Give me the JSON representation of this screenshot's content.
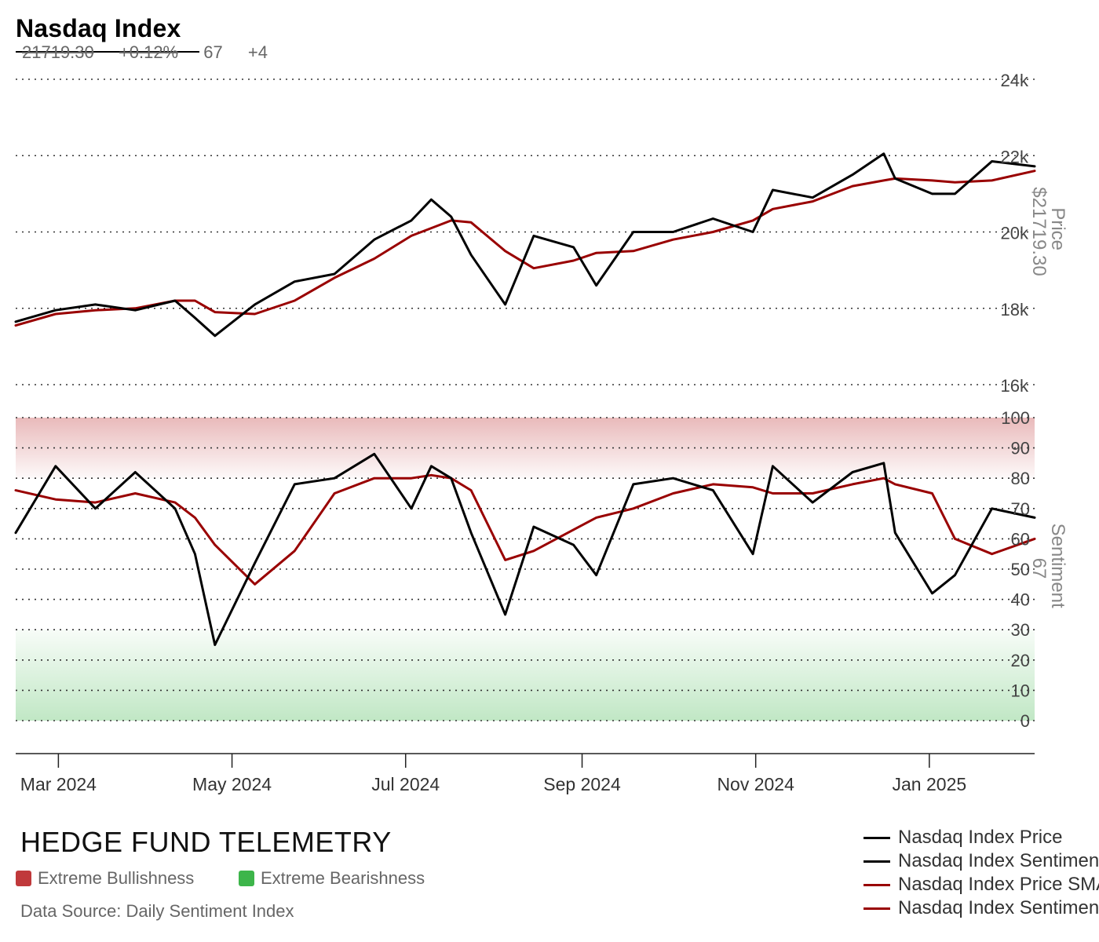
{
  "header": {
    "title": "Nasdaq Index",
    "price": "21719.30",
    "change_pct": "+0.12%",
    "sentiment": "67",
    "sentiment_change": "+4"
  },
  "footer": {
    "brand": "HEDGE FUND TELEMETRY",
    "bull_label": "Extreme Bullishness",
    "bear_label": "Extreme Bearishness",
    "source": "Data Source: Daily Sentiment Index"
  },
  "legend": [
    {
      "label": "Nasdaq Index Price",
      "color": "#000000"
    },
    {
      "label": "Nasdaq Index Sentiment",
      "color": "#000000"
    },
    {
      "label": "Nasdaq Index Price SMA",
      "color": "#990000"
    },
    {
      "label": "Nasdaq Index Sentiment SMA",
      "color": "#990000"
    }
  ],
  "colors": {
    "price": "#000000",
    "sma": "#990000",
    "bull_zone": "#c0393b",
    "bear_zone": "#3db54a",
    "grid": "#333333"
  },
  "chart_data": [
    {
      "type": "line",
      "title": "Nasdaq Index",
      "ylabel": "Price",
      "ylabel_value": "$21719.30",
      "ylim": [
        16000,
        24000
      ],
      "yticks": [
        "16k",
        "18k",
        "20k",
        "22k",
        "24k"
      ],
      "ytick_values": [
        16000,
        18000,
        20000,
        22000,
        24000
      ],
      "grid": true,
      "x": [
        "2024-02-15",
        "2024-02-29",
        "2024-03-14",
        "2024-03-28",
        "2024-04-11",
        "2024-04-18",
        "2024-04-25",
        "2024-05-09",
        "2024-05-23",
        "2024-06-06",
        "2024-06-20",
        "2024-07-03",
        "2024-07-10",
        "2024-07-17",
        "2024-07-24",
        "2024-08-05",
        "2024-08-15",
        "2024-08-29",
        "2024-09-06",
        "2024-09-19",
        "2024-10-03",
        "2024-10-17",
        "2024-10-31",
        "2024-11-07",
        "2024-11-21",
        "2024-12-05",
        "2024-12-16",
        "2024-12-20",
        "2025-01-02",
        "2025-01-10",
        "2025-01-23",
        "2025-02-07"
      ],
      "series": [
        {
          "name": "Nasdaq Index Price",
          "values": [
            17650,
            17950,
            18100,
            17950,
            18200,
            17750,
            17280,
            18100,
            18700,
            18900,
            19800,
            20300,
            20850,
            20400,
            19400,
            18100,
            19900,
            19600,
            18600,
            20000,
            20000,
            20350,
            20000,
            21100,
            20900,
            21500,
            22050,
            21400,
            21000,
            21000,
            21850,
            21719.3
          ]
        },
        {
          "name": "Nasdaq Index Price SMA",
          "values": [
            17550,
            17850,
            17950,
            18000,
            18200,
            18200,
            17900,
            17850,
            18200,
            18800,
            19300,
            19900,
            20100,
            20300,
            20250,
            19500,
            19050,
            19250,
            19450,
            19500,
            19800,
            20000,
            20300,
            20600,
            20800,
            21200,
            21350,
            21400,
            21350,
            21300,
            21350,
            21600
          ]
        }
      ]
    },
    {
      "type": "line",
      "title": "",
      "ylabel": "Sentiment",
      "ylabel_value": "67",
      "ylim": [
        0,
        100
      ],
      "yticks": [
        "0",
        "10",
        "20",
        "30",
        "40",
        "50",
        "60",
        "70",
        "80",
        "90",
        "100"
      ],
      "ytick_values": [
        0,
        10,
        20,
        30,
        40,
        50,
        60,
        70,
        80,
        90,
        100
      ],
      "grid": true,
      "zones": [
        {
          "label": "Extreme Bullishness",
          "range": [
            80,
            100
          ]
        },
        {
          "label": "Extreme Bearishness",
          "range": [
            0,
            30
          ]
        }
      ],
      "x": [
        "2024-02-15",
        "2024-02-29",
        "2024-03-14",
        "2024-03-28",
        "2024-04-11",
        "2024-04-18",
        "2024-04-25",
        "2024-05-09",
        "2024-05-23",
        "2024-06-06",
        "2024-06-20",
        "2024-07-03",
        "2024-07-10",
        "2024-07-17",
        "2024-07-24",
        "2024-08-05",
        "2024-08-15",
        "2024-08-29",
        "2024-09-06",
        "2024-09-19",
        "2024-10-03",
        "2024-10-17",
        "2024-10-31",
        "2024-11-07",
        "2024-11-21",
        "2024-12-05",
        "2024-12-16",
        "2024-12-20",
        "2025-01-02",
        "2025-01-10",
        "2025-01-23",
        "2025-02-07"
      ],
      "series": [
        {
          "name": "Nasdaq Index Sentiment",
          "values": [
            62,
            84,
            70,
            82,
            70,
            55,
            25,
            52,
            78,
            80,
            88,
            70,
            84,
            80,
            62,
            35,
            64,
            58,
            48,
            78,
            80,
            76,
            55,
            84,
            72,
            82,
            85,
            62,
            42,
            48,
            70,
            67
          ]
        },
        {
          "name": "Nasdaq Index Sentiment SMA",
          "values": [
            76,
            73,
            72,
            75,
            72,
            67,
            58,
            45,
            56,
            75,
            80,
            80,
            81,
            80,
            76,
            53,
            56,
            63,
            67,
            70,
            75,
            78,
            77,
            75,
            75,
            78,
            80,
            78,
            75,
            60,
            55,
            60
          ]
        }
      ]
    }
  ],
  "x_axis": {
    "ticks": [
      "Mar 2024",
      "May 2024",
      "Jul 2024",
      "Sep 2024",
      "Nov 2024",
      "Jan 2025"
    ],
    "tick_dates": [
      "2024-03-01",
      "2024-05-01",
      "2024-07-01",
      "2024-09-01",
      "2024-11-01",
      "2025-01-01"
    ],
    "range": [
      "2024-02-15",
      "2025-02-07"
    ]
  }
}
